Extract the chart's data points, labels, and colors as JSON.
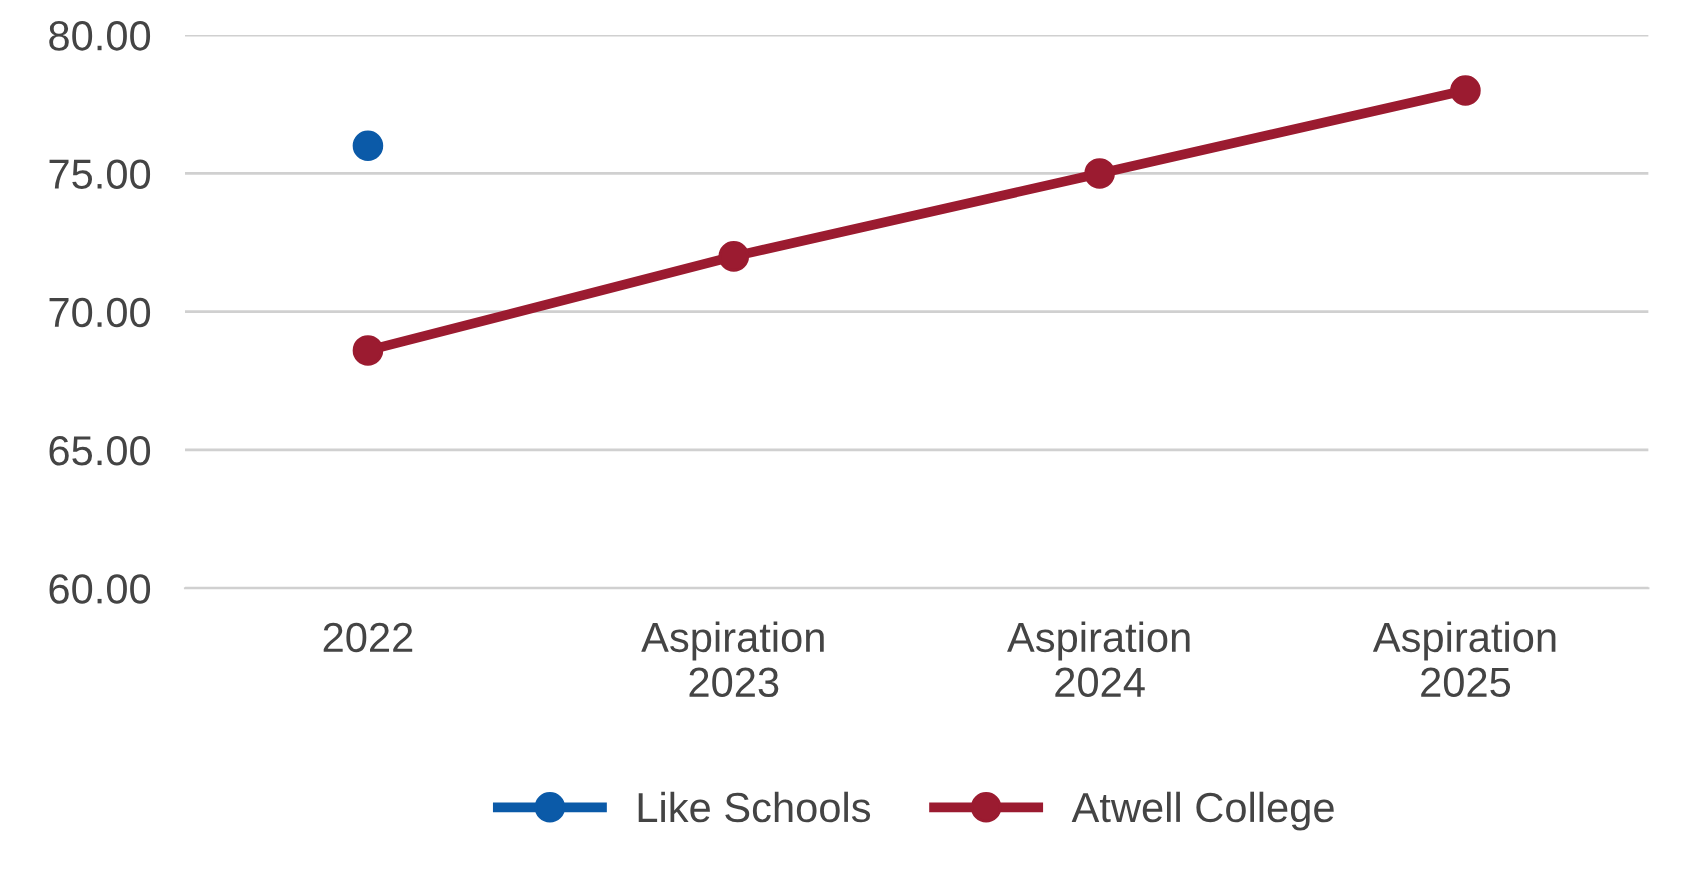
{
  "chart_data": {
    "type": "line",
    "categories": [
      "2022",
      "Aspiration\n2023",
      "Aspiration\n2024",
      "Aspiration\n2025"
    ],
    "series": [
      {
        "name": "Like Schools",
        "color": "#0b5aa8",
        "values": [
          76,
          null,
          null,
          null
        ]
      },
      {
        "name": "Atwell College",
        "color": "#9b1b30",
        "values": [
          68.6,
          72,
          75,
          78
        ]
      }
    ],
    "ylim": [
      60,
      80
    ],
    "yticks": [
      {
        "value": 60,
        "label": "60.00"
      },
      {
        "value": 65,
        "label": "65.00"
      },
      {
        "value": 70,
        "label": "70.00"
      },
      {
        "value": 75,
        "label": "75.00"
      },
      {
        "value": 80,
        "label": "80.00"
      }
    ],
    "grid": "y",
    "legend": "bottom",
    "marker": "circle",
    "line_style": "solid"
  }
}
